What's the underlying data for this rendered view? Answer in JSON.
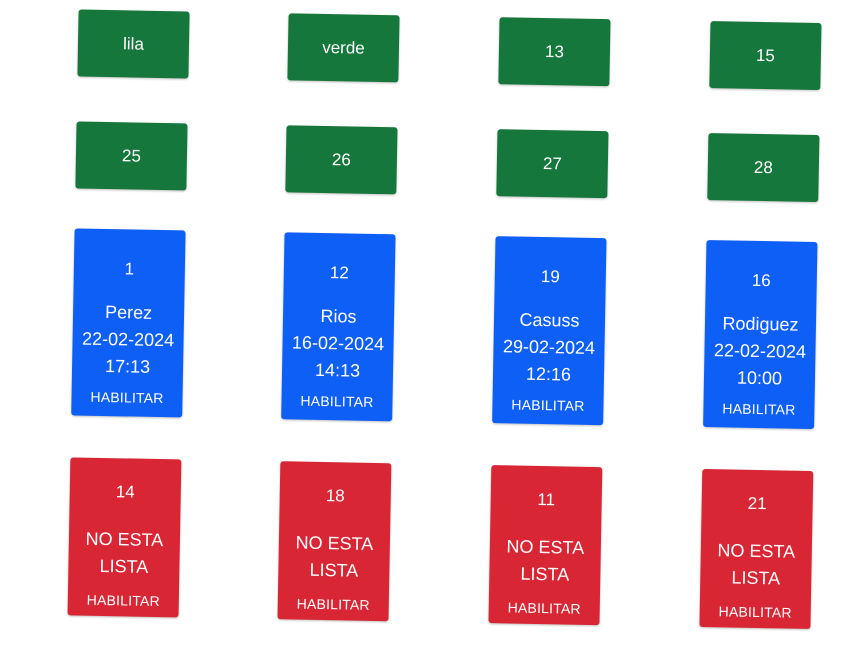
{
  "top_row": [
    "lila",
    "verde",
    "13",
    "15"
  ],
  "second_row": [
    "25",
    "26",
    "27",
    "28"
  ],
  "ready_cards": [
    {
      "number": "1",
      "name": "Perez",
      "date": "22-02-2024",
      "time": "17:13",
      "action": "HABILITAR"
    },
    {
      "number": "12",
      "name": "Rios",
      "date": "16-02-2024",
      "time": "14:13",
      "action": "HABILITAR"
    },
    {
      "number": "19",
      "name": "Casuss",
      "date": "29-02-2024",
      "time": "12:16",
      "action": "HABILITAR"
    },
    {
      "number": "16",
      "name": "Rodiguez",
      "date": "22-02-2024",
      "time": "10:00",
      "action": "HABILITAR"
    }
  ],
  "not_ready_cards": [
    {
      "number": "14",
      "status_line1": "NO ESTA",
      "status_line2": "LISTA",
      "action": "HABILITAR"
    },
    {
      "number": "18",
      "status_line1": "NO ESTA",
      "status_line2": "LISTA",
      "action": "HABILITAR"
    },
    {
      "number": "11",
      "status_line1": "NO ESTA",
      "status_line2": "LISTA",
      "action": "HABILITAR"
    },
    {
      "number": "21",
      "status_line1": "NO ESTA",
      "status_line2": "LISTA",
      "action": "HABILITAR"
    }
  ],
  "colors": {
    "green": "#16773c",
    "blue": "#0d5ff5",
    "red": "#d92634"
  }
}
